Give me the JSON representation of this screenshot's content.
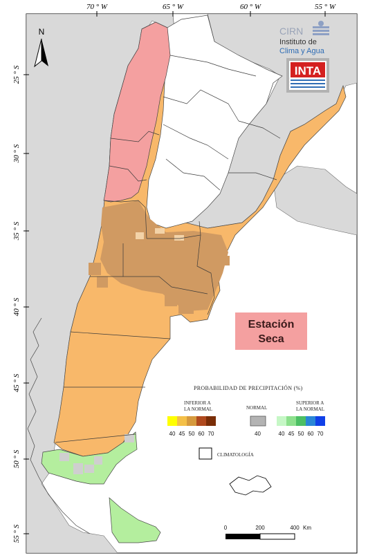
{
  "axes": {
    "top_labels": [
      "70 ° W",
      "65 ° W",
      "60 ° W",
      "55 ° W"
    ],
    "left_labels": [
      "25 ° S",
      "30 ° S",
      "35 ° S",
      "40 ° S",
      "45 ° S",
      "50 ° S",
      "55 ° S"
    ]
  },
  "north_arrow": {
    "label": "N"
  },
  "logo": {
    "org": "CIRN",
    "line1": "Instituto de",
    "line2": "Clima y Agua",
    "inta": "INTA"
  },
  "season_box": {
    "line1": "Estación",
    "line2": "Seca",
    "color": "#f4a0a0"
  },
  "legend": {
    "title": "PROBABILIDAD DE PRECIPITACIÓN (%)",
    "below": {
      "line1": "INFERIOR A",
      "line2": "LA NORMAL",
      "ticks": [
        "40",
        "45",
        "50",
        "60",
        "70"
      ],
      "colors": [
        "#ffff00",
        "#f4c048",
        "#d69a3e",
        "#b04a1e",
        "#7a2e08"
      ]
    },
    "normal": {
      "label": "NORMAL",
      "tick": "40",
      "color": "#b3b3b3"
    },
    "above": {
      "line1": "SUPERIOR A",
      "line2": "LA NORMAL",
      "ticks": [
        "40",
        "45",
        "50",
        "60",
        "70"
      ],
      "colors": [
        "#c6f7c6",
        "#8de08d",
        "#4cbf64",
        "#2a86d6",
        "#1040e8"
      ]
    },
    "climatology": "CLIMATOLOGÍA"
  },
  "scale_bar": {
    "ticks": [
      "0",
      "200",
      "400"
    ],
    "unit": "Km"
  },
  "colors": {
    "pink": "#f4a0a0",
    "orange": "#f8b86a",
    "brown": "#d09a62",
    "green": "#b4ee9e",
    "land": "#d9d9d9",
    "white": "#ffffff"
  }
}
